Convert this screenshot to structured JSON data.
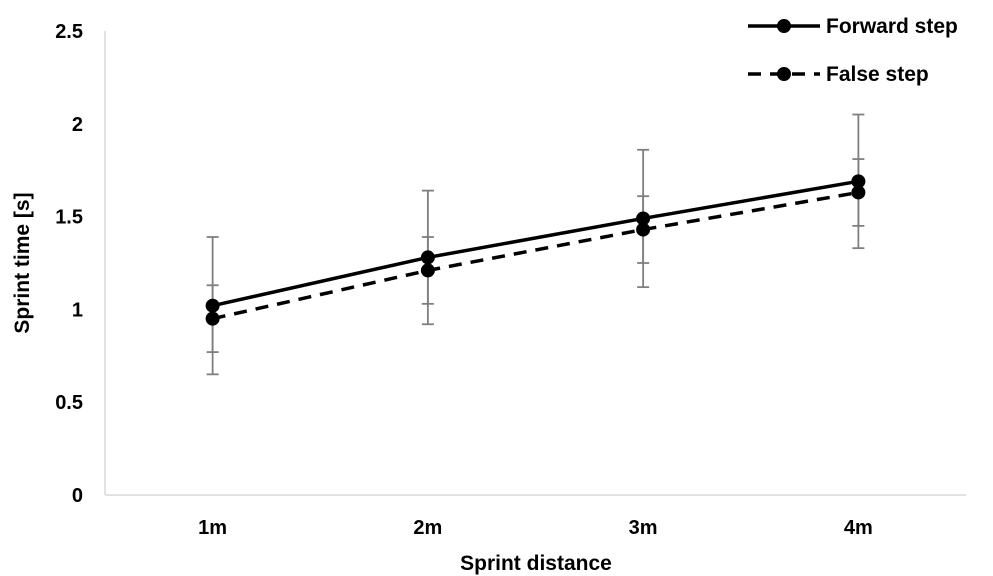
{
  "chart_data": {
    "type": "line",
    "categories": [
      "1m",
      "2m",
      "3m",
      "4m"
    ],
    "xlabel": "Sprint distance",
    "ylabel": "Sprint time [s]",
    "ylim": [
      0,
      2.5
    ],
    "yticks": [
      "0",
      "0.5",
      "1",
      "1.5",
      "2",
      "2.5"
    ],
    "grid": false,
    "legend_position": "top-right",
    "series": [
      {
        "name": "Forward step",
        "line_style": "solid",
        "color": "#000000",
        "values": [
          1.02,
          1.28,
          1.49,
          1.69
        ],
        "error": [
          0.37,
          0.36,
          0.37,
          0.36
        ]
      },
      {
        "name": "False step",
        "line_style": "dashed",
        "color": "#000000",
        "values": [
          0.95,
          1.21,
          1.43,
          1.63
        ],
        "error": [
          0.18,
          0.18,
          0.18,
          0.18
        ]
      }
    ],
    "error_bar_color": "#7f7f7f"
  }
}
